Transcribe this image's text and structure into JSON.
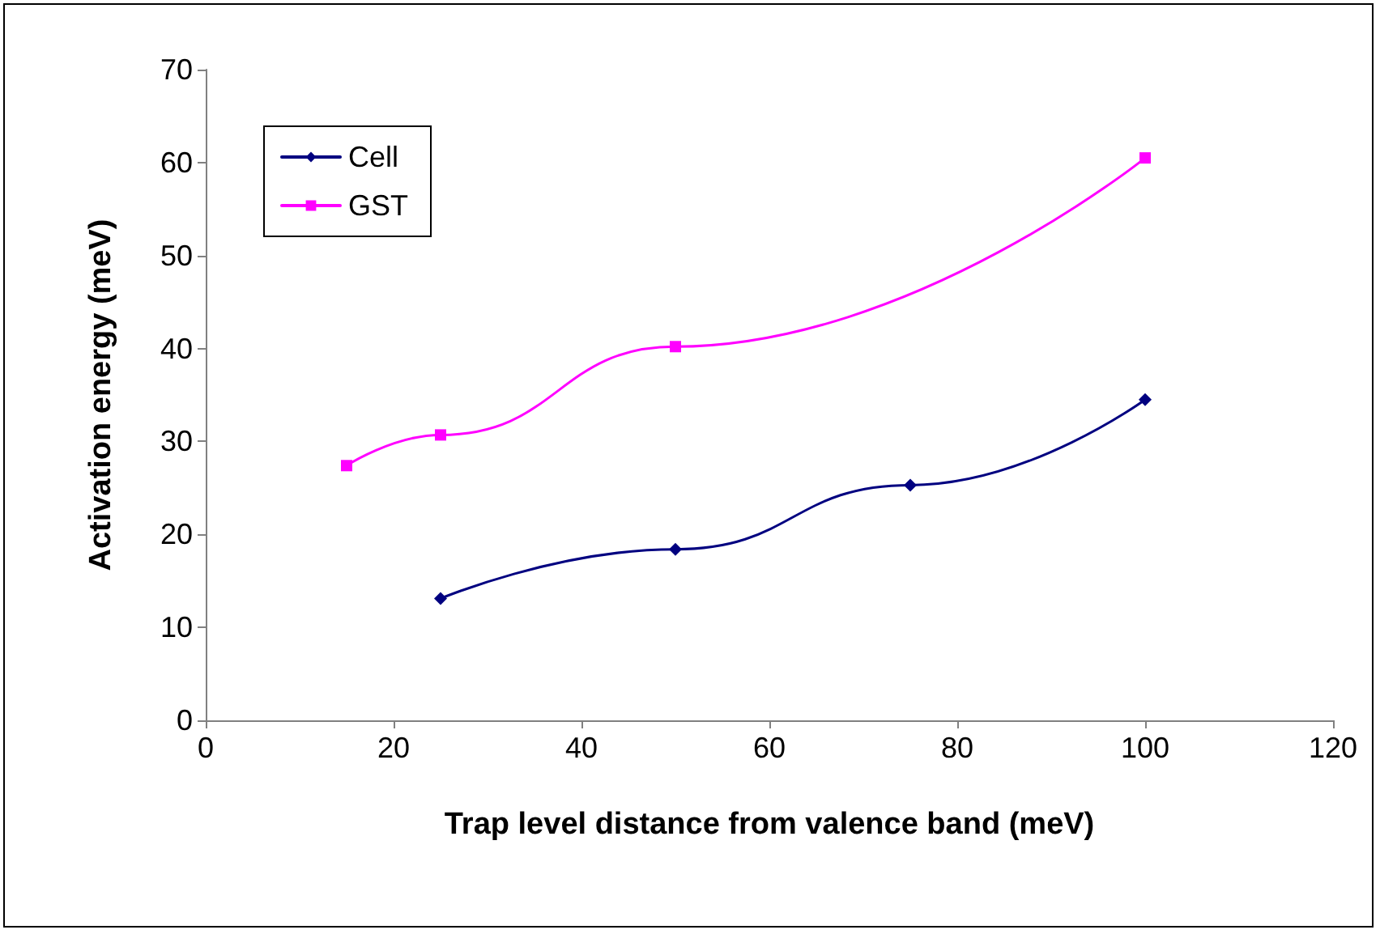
{
  "chart_data": {
    "type": "line",
    "xlabel": "Trap level distance from valence band (meV)",
    "ylabel": "Activation energy (meV)",
    "xlim": [
      0,
      120
    ],
    "xticks": [
      0,
      20,
      40,
      60,
      80,
      100,
      120
    ],
    "ylim": [
      0,
      70
    ],
    "yticks": [
      0,
      10,
      20,
      30,
      40,
      50,
      60,
      70
    ],
    "grid": false,
    "legend": "top left",
    "line_style": "solid",
    "series": [
      {
        "name": "Cell",
        "color": "#000080",
        "marker": "diamond",
        "x": [
          25,
          50,
          75,
          100
        ],
        "values": [
          13.1,
          18.4,
          25.3,
          34.5
        ]
      },
      {
        "name": "GST",
        "color": "#ff00ff",
        "marker": "square",
        "x": [
          15,
          25,
          50,
          100
        ],
        "values": [
          27.4,
          30.7,
          40.2,
          60.5
        ]
      }
    ]
  }
}
